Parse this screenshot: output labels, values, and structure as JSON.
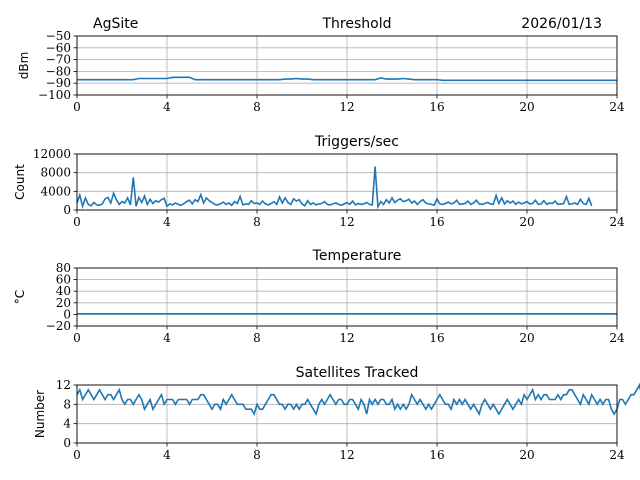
{
  "header": {
    "site": "AgSite",
    "date": "2026/01/13"
  },
  "chart_data": [
    {
      "type": "line",
      "title": "Threshold",
      "xlabel": "",
      "ylabel": "dBm",
      "xlim": [
        0,
        24
      ],
      "ylim": [
        -100,
        -50
      ],
      "xticks": [
        "0",
        "4",
        "8",
        "12",
        "16",
        "20",
        "24"
      ],
      "yticks": [
        "−50",
        "−60",
        "−70",
        "−80",
        "−90",
        "−100"
      ],
      "ytick_values": [
        -50,
        -60,
        -70,
        -80,
        -90,
        -100
      ],
      "grid": true,
      "color": "#1f77b4",
      "x_start": 0,
      "x_step": 0.25,
      "values": [
        -87,
        -87,
        -87,
        -87,
        -87,
        -87,
        -87,
        -87,
        -87,
        -87,
        -87,
        -86,
        -86,
        -86,
        -86,
        -86,
        -86,
        -85,
        -85,
        -85,
        -85,
        -87,
        -87,
        -87,
        -87,
        -87,
        -87,
        -87,
        -87,
        -87,
        -87,
        -87,
        -87,
        -87,
        -87,
        -87,
        -87,
        -86.5,
        -86.5,
        -86,
        -86.5,
        -86.5,
        -87,
        -87,
        -87,
        -87,
        -87,
        -87,
        -87,
        -87,
        -87,
        -87,
        -87,
        -87,
        -85.5,
        -86.5,
        -86.5,
        -86.5,
        -86,
        -86.5,
        -87,
        -87,
        -87,
        -87,
        -87,
        -87.5,
        -87.5,
        -87.5,
        -87.5,
        -87.5,
        -87.5,
        -87.5,
        -87.5,
        -87.5,
        -87.5,
        -87.5,
        -87.5,
        -87.5,
        -87.5,
        -87.5,
        -87.5,
        -87.5,
        -87.5,
        -87.5,
        -87.5,
        -87.5,
        -87.5,
        -87.5,
        -87.5,
        -87.5,
        -87.5,
        -87.5,
        -87.5,
        -87.5,
        -87.5,
        -87.5,
        -87.5
      ]
    },
    {
      "type": "line",
      "title": "Triggers/sec",
      "xlabel": "",
      "ylabel": "Count",
      "xlim": [
        0,
        24
      ],
      "ylim": [
        0,
        12000
      ],
      "xticks": [
        "0",
        "4",
        "8",
        "12",
        "16",
        "20",
        "24"
      ],
      "yticks": [
        "12000",
        "8000",
        "4000",
        "0"
      ],
      "ytick_values": [
        12000,
        8000,
        4000,
        0
      ],
      "grid": true,
      "color": "#1f77b4",
      "x_start": 0,
      "x_step": 0.125,
      "values": [
        1500,
        3200,
        800,
        2600,
        1200,
        900,
        1600,
        1100,
        1000,
        1300,
        2400,
        2700,
        1500,
        3600,
        2200,
        1200,
        1800,
        1500,
        2600,
        1100,
        7000,
        800,
        2700,
        1600,
        3000,
        1200,
        2300,
        1400,
        2000,
        1700,
        2200,
        2500,
        800,
        1300,
        1100,
        1500,
        1200,
        1000,
        1400,
        1800,
        2100,
        1300,
        2200,
        1800,
        3300,
        1500,
        2600,
        2000,
        1600,
        1200,
        1100,
        1300,
        1700,
        1200,
        1500,
        1000,
        1800,
        1400,
        2900,
        1100,
        1300,
        1200,
        2000,
        1400,
        1500,
        1200,
        1900,
        1300,
        1100,
        1400,
        1800,
        1200,
        2800,
        1500,
        2600,
        1600,
        1200,
        2400,
        1900,
        2200,
        1300,
        900,
        2000,
        1200,
        1500,
        1100,
        1300,
        1400,
        1800,
        1200,
        1100,
        1300,
        1500,
        1200,
        1000,
        1300,
        1600,
        1200,
        1900,
        1100,
        1400,
        1200,
        1300,
        1600,
        1200,
        1100,
        9300,
        700,
        1800,
        1200,
        2200,
        1500,
        2600,
        1600,
        2100,
        2400,
        1800,
        2000,
        2300,
        1500,
        1900,
        1200,
        1800,
        2200,
        1500,
        1300,
        1200,
        1000,
        2400,
        1300,
        1200,
        1400,
        1700,
        1300,
        1500,
        2100,
        1200,
        1300,
        1400,
        1900,
        1200,
        1500,
        2100,
        1300,
        1200,
        1400,
        1600,
        1300,
        1200,
        3100,
        1400,
        2600,
        1300,
        2000,
        1500,
        1900,
        1200,
        1700,
        1300,
        1500,
        1800,
        1300,
        1400,
        2100,
        1200,
        1300,
        2000,
        1200,
        1500,
        1400,
        1900,
        1200,
        1300,
        1400,
        2900,
        1200,
        1300,
        1500,
        1200,
        2300,
        1400,
        1200,
        2500,
        900
      ]
    },
    {
      "type": "line",
      "title": "Temperature",
      "xlabel": "",
      "ylabel": "°C",
      "xlim": [
        0,
        24
      ],
      "ylim": [
        -20,
        80
      ],
      "xticks": [
        "0",
        "4",
        "8",
        "12",
        "16",
        "20",
        "24"
      ],
      "yticks": [
        "80",
        "60",
        "40",
        "20",
        "0",
        "−20"
      ],
      "ytick_values": [
        80,
        60,
        40,
        20,
        0,
        -20
      ],
      "grid": true,
      "color": "#1f77b4",
      "x_start": 0,
      "x_step": 24,
      "values": [
        1,
        1
      ]
    },
    {
      "type": "line",
      "title": "Satellites Tracked",
      "xlabel": "",
      "ylabel": "Number",
      "xlim": [
        0,
        24
      ],
      "ylim": [
        0,
        12
      ],
      "xticks": [
        "0",
        "4",
        "8",
        "12",
        "16",
        "20",
        "24"
      ],
      "yticks": [
        "12",
        "8",
        "4",
        "0"
      ],
      "ytick_values": [
        12,
        8,
        4,
        0
      ],
      "grid": true,
      "color": "#1f77b4",
      "x_start": 0,
      "x_step": 0.125,
      "values": [
        10,
        11,
        9,
        10,
        11,
        10,
        9,
        10,
        11,
        10,
        9,
        10,
        10,
        9,
        10,
        11,
        9,
        8,
        9,
        9,
        8,
        9,
        10,
        9,
        7,
        8,
        9,
        7,
        8,
        9,
        10,
        8,
        9,
        9,
        9,
        8,
        9,
        9,
        9,
        9,
        8,
        9,
        9,
        9,
        10,
        10,
        9,
        8,
        7,
        8,
        8,
        7,
        9,
        8,
        9,
        10,
        9,
        8,
        8,
        8,
        7,
        7,
        7,
        6,
        8,
        7,
        7,
        8,
        9,
        10,
        10,
        9,
        8,
        8,
        7,
        8,
        8,
        7,
        8,
        7,
        8,
        8,
        9,
        8,
        7,
        6,
        8,
        9,
        8,
        9,
        10,
        9,
        8,
        9,
        9,
        8,
        8,
        9,
        9,
        8,
        7,
        9,
        8,
        6,
        9,
        8,
        9,
        8,
        9,
        9,
        8,
        8,
        9,
        7,
        8,
        7,
        8,
        7,
        8,
        10,
        9,
        8,
        9,
        8,
        7,
        8,
        7,
        8,
        9,
        10,
        9,
        8,
        8,
        7,
        9,
        8,
        9,
        8,
        9,
        8,
        7,
        8,
        7,
        6,
        8,
        9,
        8,
        7,
        8,
        7,
        6,
        7,
        8,
        9,
        8,
        7,
        8,
        9,
        8,
        10,
        9,
        10,
        11,
        9,
        10,
        9,
        10,
        10,
        9,
        9,
        9,
        10,
        9,
        10,
        10,
        11,
        11,
        10,
        9,
        8,
        10,
        9,
        8,
        10,
        9,
        8,
        9,
        8,
        9,
        9,
        7,
        6,
        7,
        9,
        9,
        8,
        9,
        10,
        10,
        11,
        12,
        9
      ]
    }
  ]
}
